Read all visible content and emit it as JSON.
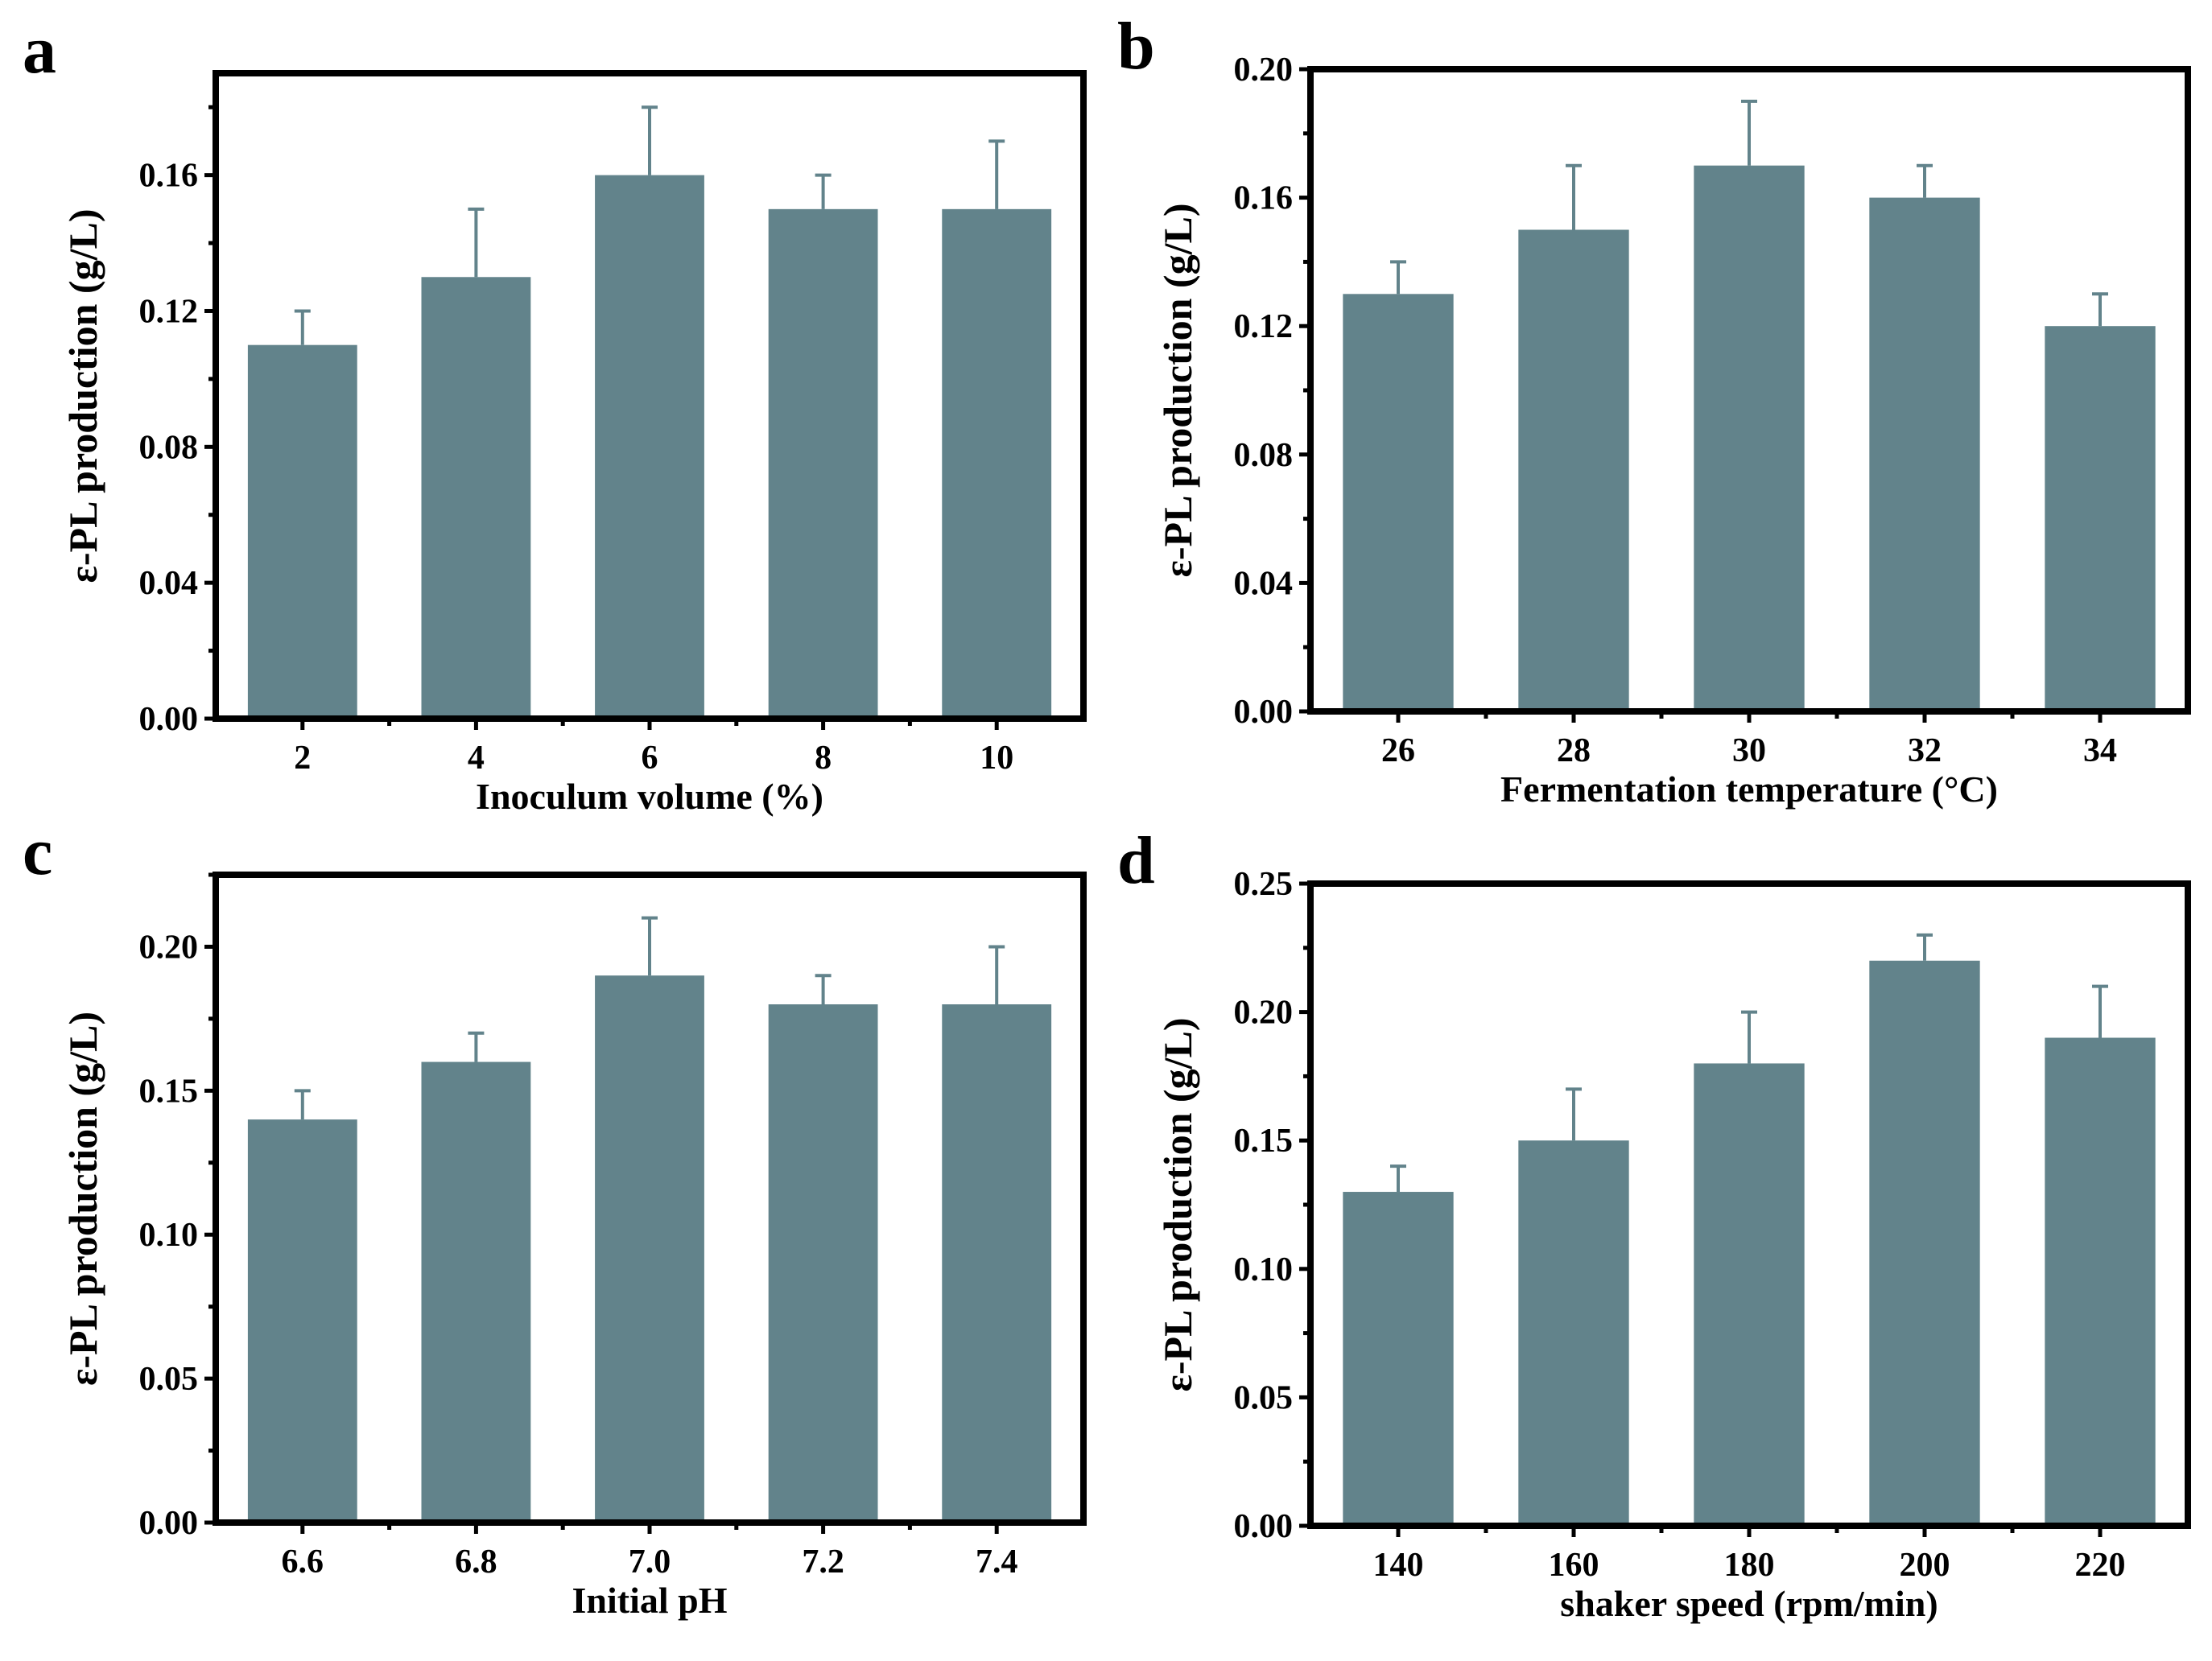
{
  "figure": {
    "bar_color": "#62838b",
    "axis_color": "#000000",
    "panels": [
      {
        "label": "a",
        "chart_data": {
          "type": "bar",
          "categories": [
            "2",
            "4",
            "6",
            "8",
            "10"
          ],
          "values": [
            0.11,
            0.13,
            0.16,
            0.15,
            0.15
          ],
          "errors": [
            0.01,
            0.02,
            0.02,
            0.01,
            0.02
          ],
          "title": "",
          "xlabel": "Inoculum volume (%)",
          "ylabel": "ε-PL production (g/L)",
          "ylim": [
            0,
            0.19
          ],
          "yticks": [
            0.0,
            0.04,
            0.08,
            0.12,
            0.16
          ],
          "ytick_labels": [
            "0.00",
            "0.04",
            "0.08",
            "0.12",
            "0.16"
          ]
        }
      },
      {
        "label": "b",
        "chart_data": {
          "type": "bar",
          "categories": [
            "26",
            "28",
            "30",
            "32",
            "34"
          ],
          "values": [
            0.13,
            0.15,
            0.17,
            0.16,
            0.12
          ],
          "errors": [
            0.01,
            0.02,
            0.02,
            0.01,
            0.01
          ],
          "title": "",
          "xlabel": "Fermentation temperature (°C)",
          "ylabel": "ε-PL production (g/L)",
          "ylim": [
            0,
            0.2
          ],
          "yticks": [
            0.0,
            0.04,
            0.08,
            0.12,
            0.16,
            0.2
          ],
          "ytick_labels": [
            "0.00",
            "0.04",
            "0.08",
            "0.12",
            "0.16",
            "0.20"
          ]
        }
      },
      {
        "label": "c",
        "chart_data": {
          "type": "bar",
          "categories": [
            "6.6",
            "6.8",
            "7.0",
            "7.2",
            "7.4"
          ],
          "values": [
            0.14,
            0.16,
            0.19,
            0.18,
            0.18
          ],
          "errors": [
            0.01,
            0.01,
            0.02,
            0.01,
            0.02
          ],
          "title": "",
          "xlabel": "Initial pH",
          "ylabel": "ε-PL production (g/L)",
          "ylim": [
            0,
            0.225
          ],
          "yticks": [
            0.0,
            0.05,
            0.1,
            0.15,
            0.2
          ],
          "ytick_labels": [
            "0.00",
            "0.05",
            "0.10",
            "0.15",
            "0.20"
          ]
        }
      },
      {
        "label": "d",
        "chart_data": {
          "type": "bar",
          "categories": [
            "140",
            "160",
            "180",
            "200",
            "220"
          ],
          "values": [
            0.13,
            0.15,
            0.18,
            0.22,
            0.19
          ],
          "errors": [
            0.01,
            0.02,
            0.02,
            0.01,
            0.02
          ],
          "title": "",
          "xlabel": "shaker speed (rpm/min)",
          "ylabel": "ε-PL production (g/L)",
          "ylim": [
            0,
            0.25
          ],
          "yticks": [
            0.0,
            0.05,
            0.1,
            0.15,
            0.2,
            0.25
          ],
          "ytick_labels": [
            "0.00",
            "0.05",
            "0.10",
            "0.15",
            "0.20",
            "0.25"
          ]
        }
      }
    ]
  }
}
